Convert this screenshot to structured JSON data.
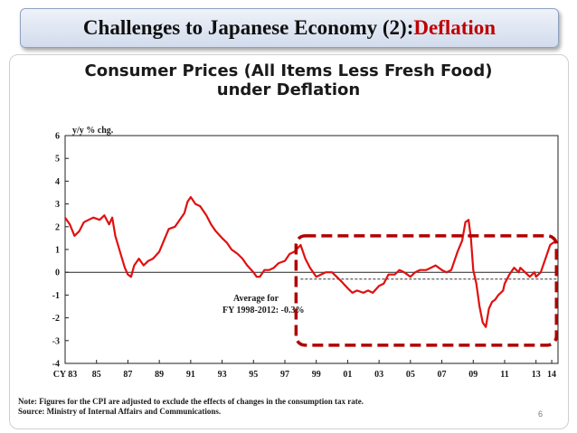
{
  "slide": {
    "title_prefix": "Challenges to Japanese Economy (2): ",
    "title_accent": "Deflation",
    "page_number": "6",
    "accent_color": "#c00000"
  },
  "notes": {
    "line1": "Note: Figures for the CPI are adjusted to exclude the effects of changes in the consumption tax rate.",
    "line2": "Source: Ministry of Internal Affairs and Communications."
  },
  "chart_data": {
    "type": "line",
    "title_line1": "Consumer Prices (All Items Less Fresh Food)",
    "title_line2": "under Deflation",
    "ylabel": "y/y % chg.",
    "ylim": [
      -4,
      6
    ],
    "yticks": [
      "6",
      "5",
      "4",
      "3",
      "2",
      "1",
      "0",
      "-1",
      "-2",
      "-3",
      "-4"
    ],
    "xlim": [
      1983,
      2014.4
    ],
    "xticks": [
      {
        "x": 1983,
        "label": "CY 83"
      },
      {
        "x": 1985,
        "label": "85"
      },
      {
        "x": 1987,
        "label": "87"
      },
      {
        "x": 1989,
        "label": "89"
      },
      {
        "x": 1991,
        "label": "91"
      },
      {
        "x": 1993,
        "label": "93"
      },
      {
        "x": 1995,
        "label": "95"
      },
      {
        "x": 1997,
        "label": "97"
      },
      {
        "x": 1999,
        "label": "99"
      },
      {
        "x": 2001,
        "label": "01"
      },
      {
        "x": 2003,
        "label": "03"
      },
      {
        "x": 2005,
        "label": "05"
      },
      {
        "x": 2007,
        "label": "07"
      },
      {
        "x": 2009,
        "label": "09"
      },
      {
        "x": 2011,
        "label": "11"
      },
      {
        "x": 2013,
        "label": "13"
      },
      {
        "x": 2014,
        "label": "14"
      }
    ],
    "series": [
      {
        "color": "#e01010",
        "points": [
          [
            1983.0,
            2.4
          ],
          [
            1983.3,
            2.1
          ],
          [
            1983.6,
            1.6
          ],
          [
            1983.9,
            1.8
          ],
          [
            1984.2,
            2.2
          ],
          [
            1984.5,
            2.3
          ],
          [
            1984.8,
            2.4
          ],
          [
            1985.2,
            2.3
          ],
          [
            1985.5,
            2.5
          ],
          [
            1985.8,
            2.1
          ],
          [
            1986.0,
            2.4
          ],
          [
            1986.2,
            1.6
          ],
          [
            1986.5,
            0.9
          ],
          [
            1986.8,
            0.2
          ],
          [
            1987.0,
            -0.1
          ],
          [
            1987.2,
            -0.2
          ],
          [
            1987.4,
            0.3
          ],
          [
            1987.7,
            0.6
          ],
          [
            1988.0,
            0.3
          ],
          [
            1988.3,
            0.5
          ],
          [
            1988.6,
            0.6
          ],
          [
            1989.0,
            0.9
          ],
          [
            1989.3,
            1.4
          ],
          [
            1989.6,
            1.9
          ],
          [
            1990.0,
            2.0
          ],
          [
            1990.3,
            2.3
          ],
          [
            1990.6,
            2.6
          ],
          [
            1990.8,
            3.1
          ],
          [
            1991.0,
            3.3
          ],
          [
            1991.3,
            3.0
          ],
          [
            1991.6,
            2.9
          ],
          [
            1992.0,
            2.5
          ],
          [
            1992.3,
            2.1
          ],
          [
            1992.6,
            1.8
          ],
          [
            1993.0,
            1.5
          ],
          [
            1993.3,
            1.3
          ],
          [
            1993.6,
            1.0
          ],
          [
            1994.0,
            0.8
          ],
          [
            1994.3,
            0.6
          ],
          [
            1994.6,
            0.3
          ],
          [
            1995.0,
            0.0
          ],
          [
            1995.2,
            -0.2
          ],
          [
            1995.4,
            -0.2
          ],
          [
            1995.7,
            0.1
          ],
          [
            1996.0,
            0.1
          ],
          [
            1996.3,
            0.2
          ],
          [
            1996.6,
            0.4
          ],
          [
            1997.0,
            0.5
          ],
          [
            1997.3,
            0.8
          ],
          [
            1997.6,
            0.9
          ],
          [
            1998.0,
            1.2
          ],
          [
            1998.3,
            0.6
          ],
          [
            1998.6,
            0.2
          ],
          [
            1999.0,
            -0.2
          ],
          [
            1999.3,
            -0.1
          ],
          [
            1999.6,
            0.0
          ],
          [
            2000.0,
            0.0
          ],
          [
            2000.3,
            -0.2
          ],
          [
            2000.6,
            -0.4
          ],
          [
            2001.0,
            -0.7
          ],
          [
            2001.3,
            -0.9
          ],
          [
            2001.6,
            -0.8
          ],
          [
            2002.0,
            -0.9
          ],
          [
            2002.3,
            -0.8
          ],
          [
            2002.6,
            -0.9
          ],
          [
            2003.0,
            -0.6
          ],
          [
            2003.3,
            -0.5
          ],
          [
            2003.6,
            -0.1
          ],
          [
            2004.0,
            -0.1
          ],
          [
            2004.3,
            0.1
          ],
          [
            2004.6,
            0.0
          ],
          [
            2005.0,
            -0.2
          ],
          [
            2005.3,
            0.0
          ],
          [
            2005.6,
            0.1
          ],
          [
            2006.0,
            0.1
          ],
          [
            2006.3,
            0.2
          ],
          [
            2006.6,
            0.3
          ],
          [
            2007.0,
            0.1
          ],
          [
            2007.3,
            0.0
          ],
          [
            2007.6,
            0.1
          ],
          [
            2008.0,
            0.9
          ],
          [
            2008.3,
            1.4
          ],
          [
            2008.5,
            2.2
          ],
          [
            2008.7,
            2.3
          ],
          [
            2008.85,
            1.5
          ],
          [
            2009.0,
            0.1
          ],
          [
            2009.2,
            -0.5
          ],
          [
            2009.4,
            -1.5
          ],
          [
            2009.6,
            -2.2
          ],
          [
            2009.8,
            -2.4
          ],
          [
            2010.0,
            -1.6
          ],
          [
            2010.2,
            -1.3
          ],
          [
            2010.4,
            -1.2
          ],
          [
            2010.6,
            -1.0
          ],
          [
            2010.9,
            -0.8
          ],
          [
            2011.0,
            -0.5
          ],
          [
            2011.3,
            -0.1
          ],
          [
            2011.6,
            0.2
          ],
          [
            2011.9,
            0.0
          ],
          [
            2012.0,
            0.2
          ],
          [
            2012.3,
            0.0
          ],
          [
            2012.6,
            -0.2
          ],
          [
            2012.9,
            0.0
          ],
          [
            2013.0,
            -0.2
          ],
          [
            2013.3,
            0.0
          ],
          [
            2013.5,
            0.4
          ],
          [
            2013.7,
            0.8
          ],
          [
            2013.9,
            1.2
          ],
          [
            2014.1,
            1.3
          ],
          [
            2014.3,
            1.3
          ]
        ]
      }
    ],
    "average_line": {
      "value": -0.3,
      "x_start": 1998,
      "x_end": 2014.3,
      "label_line1": "Average for",
      "label_line2": "FY 1998-2012: -0.3%"
    },
    "highlight_box": {
      "x_start": 1998.0,
      "x_end": 2014.3,
      "y_top": 1.6,
      "y_bottom": -3.2,
      "color": "#b00000"
    },
    "grid": false
  }
}
